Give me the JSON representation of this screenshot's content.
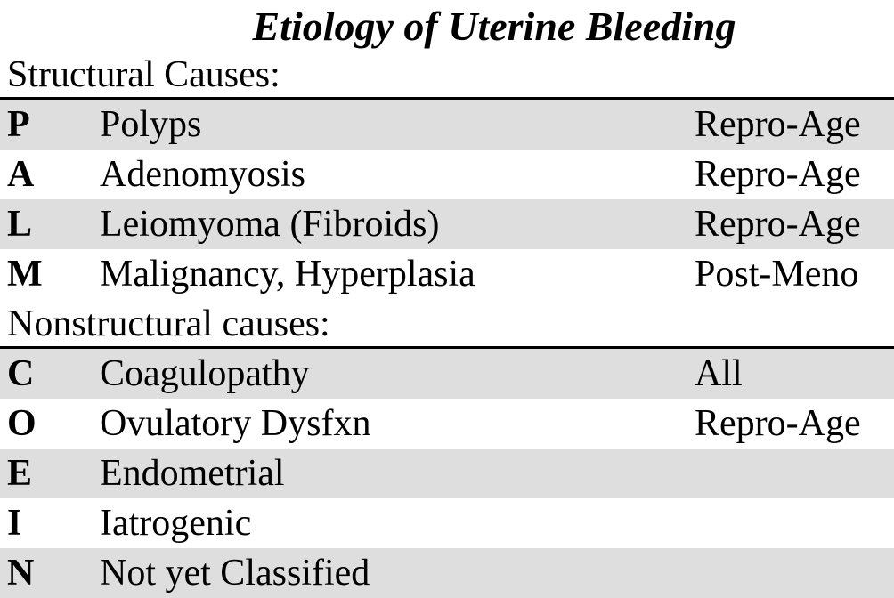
{
  "title": "Etiology of Uterine Bleeding",
  "sections": [
    {
      "header": "Structural Causes:",
      "rows": [
        {
          "letter": "P",
          "cause": "Polyps",
          "age": "Repro-Age"
        },
        {
          "letter": "A",
          "cause": "Adenomyosis",
          "age": "Repro-Age"
        },
        {
          "letter": "L",
          "cause": "Leiomyoma (Fibroids)",
          "age": "Repro-Age"
        },
        {
          "letter": "M",
          "cause": "Malignancy, Hyperplasia",
          "age": "Post-Meno"
        }
      ]
    },
    {
      "header": "Nonstructural causes:",
      "rows": [
        {
          "letter": "C",
          "cause": "Coagulopathy",
          "age": "All"
        },
        {
          "letter": "O",
          "cause": "Ovulatory Dysfxn",
          "age": "Repro-Age"
        },
        {
          "letter": "E",
          "cause": "Endometrial",
          "age": ""
        },
        {
          "letter": "I",
          "cause": "Iatrogenic",
          "age": ""
        },
        {
          "letter": "N",
          "cause": "Not yet Classified",
          "age": ""
        }
      ]
    }
  ],
  "colors": {
    "row_shade": "#dedede",
    "rule": "#000000",
    "text": "#000000"
  }
}
